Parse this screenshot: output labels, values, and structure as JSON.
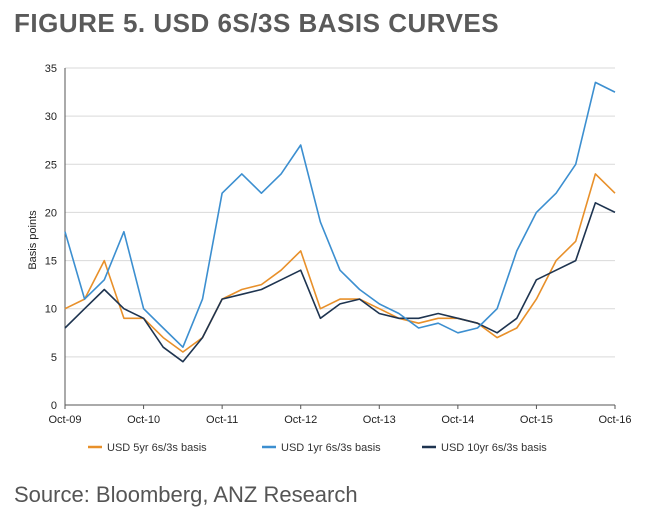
{
  "title": "FIGURE 5. USD 6S/3S BASIS CURVES",
  "source": "Source: Bloomberg, ANZ Research",
  "chart_data": {
    "type": "line",
    "title": "FIGURE 5. USD 6S/3S BASIS CURVES",
    "xlabel": "",
    "ylabel": "Basis points",
    "ylim": [
      0,
      35
    ],
    "yticks": [
      0,
      5,
      10,
      15,
      20,
      25,
      30,
      35
    ],
    "xlim": [
      "2009-10",
      "2016-10"
    ],
    "xticks": [
      "Oct-09",
      "Oct-10",
      "Oct-11",
      "Oct-12",
      "Oct-13",
      "Oct-14",
      "Oct-15",
      "Oct-16"
    ],
    "grid": "horizontal",
    "legend": "bottom",
    "x": [
      "2009-10",
      "2010-01",
      "2010-04",
      "2010-07",
      "2010-10",
      "2011-01",
      "2011-04",
      "2011-07",
      "2011-10",
      "2012-01",
      "2012-04",
      "2012-07",
      "2012-10",
      "2013-01",
      "2013-04",
      "2013-07",
      "2013-10",
      "2014-01",
      "2014-04",
      "2014-07",
      "2014-10",
      "2015-01",
      "2015-04",
      "2015-07",
      "2015-10",
      "2016-01",
      "2016-04",
      "2016-07",
      "2016-10"
    ],
    "series": [
      {
        "name": "USD 5yr 6s/3s basis",
        "color": "#e8902a",
        "values": [
          10,
          11,
          15,
          9,
          9,
          7,
          5.5,
          7,
          11,
          12,
          12.5,
          14,
          16,
          10,
          11,
          11,
          10,
          9,
          8.5,
          9,
          9,
          8.5,
          7,
          8,
          11,
          15,
          17,
          24,
          22
        ]
      },
      {
        "name": "USD 1yr 6s/3s basis",
        "color": "#3c8fd0",
        "values": [
          18,
          11,
          13,
          18,
          10,
          8,
          6,
          11,
          22,
          24,
          22,
          24,
          27,
          19,
          14,
          12,
          10.5,
          9.5,
          8,
          8.5,
          7.5,
          8,
          10,
          16,
          20,
          22,
          25,
          33.5,
          32.5
        ]
      },
      {
        "name": "USD 10yr 6s/3s basis",
        "color": "#1e3450",
        "values": [
          8,
          10,
          12,
          10,
          9,
          6,
          4.5,
          7,
          11,
          11.5,
          12,
          13,
          14,
          9,
          10.5,
          11,
          9.5,
          9,
          9,
          9.5,
          9,
          8.5,
          7.5,
          9,
          13,
          14,
          15,
          21,
          20
        ]
      }
    ]
  }
}
